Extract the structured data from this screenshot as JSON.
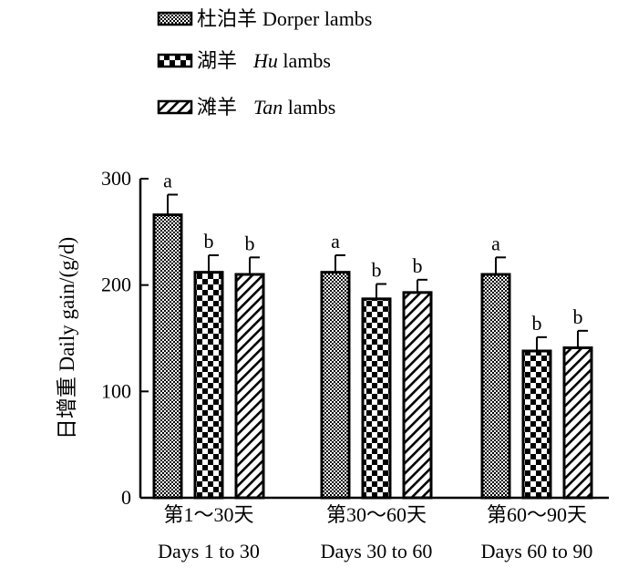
{
  "chart_data": {
    "type": "bar",
    "ylabel": "日增重 Daily gain/(g/d)",
    "ylim": [
      0,
      300
    ],
    "yticks": [
      0,
      100,
      200,
      300
    ],
    "grid": false,
    "legend_position": "top-left",
    "categories": [
      {
        "line1": "第1～30天",
        "line2": "Days 1 to 30"
      },
      {
        "line1": "第30～60天",
        "line2": "Days 30 to 60"
      },
      {
        "line1": "第60～90天",
        "line2": "Days 60 to 90"
      }
    ],
    "series": [
      {
        "name_cn": "杜泊羊",
        "name_en": "Dorper lambs",
        "name_en_italic": "",
        "name_en_rest": "",
        "pattern": "fine-checker",
        "values": [
          266,
          212,
          210
        ],
        "errors": [
          19,
          16,
          16
        ],
        "letters": [
          "a",
          "a",
          "a"
        ]
      },
      {
        "name_cn": "湖羊",
        "name_en": "",
        "name_en_italic": "Hu",
        "name_en_rest": " lambs",
        "pattern": "coarse-checker",
        "values": [
          212,
          187,
          138
        ],
        "errors": [
          16,
          14,
          13
        ],
        "letters": [
          "b",
          "b",
          "b"
        ]
      },
      {
        "name_cn": "滩羊",
        "name_en": "",
        "name_en_italic": "Tan",
        "name_en_rest": " lambs",
        "pattern": "diagonal-hatch",
        "values": [
          210,
          193,
          141
        ],
        "errors": [
          16,
          12,
          16
        ],
        "letters": [
          "b",
          "b",
          "b"
        ]
      }
    ]
  }
}
